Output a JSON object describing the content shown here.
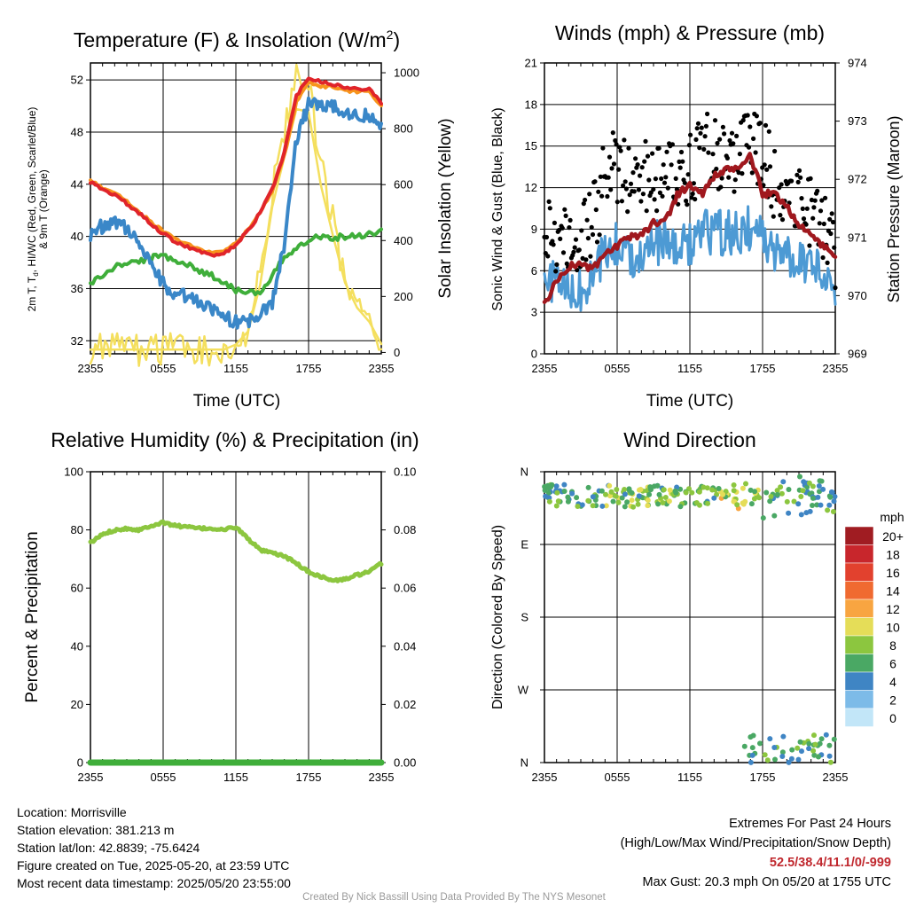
{
  "colors": {
    "temp": "#e0242a",
    "hi_wc": "#f7941d",
    "dewpoint": "#3fae3a",
    "wet": "#3a87c8",
    "solar": "#f4df5e",
    "wind": "#4d9ad4",
    "gust": "#000000",
    "pressure": "#a0181e",
    "rh": "#8cc63f",
    "precip": "#3fae3a"
  },
  "chart_data": [
    {
      "id": "temperature",
      "type": "line",
      "title": "Temperature (F) & Insolation (W/m",
      "title_sup": "2",
      "title_end": ")",
      "xlabel": "Time (UTC)",
      "ylabel_left_line1": "2m T, T",
      "ylabel_left_sub": "d",
      "ylabel_left_line1_end": ", HI/WC (Red, Green, Scarlet/Blue)",
      "ylabel_left_line2": "& 9m T (Orange)",
      "ylabel_right": "Solar Insolation (Yellow)",
      "x_ticks": [
        "2355",
        "0555",
        "1155",
        "1755",
        "2355"
      ],
      "ylim": [
        31,
        53.3
      ],
      "y_ticks": [
        32,
        36,
        40,
        44,
        48,
        52
      ],
      "y2lim": [
        -5,
        1035
      ],
      "y2_ticks": [
        0,
        200,
        400,
        600,
        800,
        1000
      ],
      "x_hours": [
        0,
        1,
        2,
        3,
        4,
        5,
        6,
        7,
        8,
        9,
        10,
        11,
        12,
        13,
        14,
        15,
        16,
        17,
        18,
        19,
        20,
        21,
        22,
        23,
        24
      ],
      "series": [
        {
          "values": [
            44.2,
            43.6,
            43.2,
            42.5,
            41.8,
            41,
            40.2,
            39.6,
            39.2,
            38.8,
            38.6,
            38.6,
            39.4,
            40.4,
            41.8,
            43.6,
            46.5,
            50.8,
            52.2,
            51.9,
            51.7,
            51.4,
            51.3,
            51.4,
            50.2
          ]
        },
        {
          "values": [
            44.3,
            43.7,
            43.4,
            42.7,
            41.9,
            41.1,
            40.4,
            39.8,
            39.4,
            39,
            38.8,
            38.8,
            39.5,
            40.5,
            41.8,
            43.5,
            46.2,
            50.3,
            51.8,
            51.5,
            51.5,
            51.2,
            51.1,
            51.2,
            50
          ]
        },
        {
          "values": [
            36.4,
            37,
            37.6,
            38,
            38.1,
            38.3,
            38.6,
            38.2,
            37.8,
            37.4,
            37,
            36.5,
            35.9,
            35.8,
            35.5,
            36.9,
            38.4,
            39.2,
            39.8,
            40,
            39.9,
            40,
            40.1,
            40.2,
            40.4
          ]
        },
        {
          "values": [
            40.2,
            40.8,
            41.2,
            40.6,
            39.8,
            37.8,
            36.4,
            35.6,
            35.3,
            34.9,
            34.3,
            33.8,
            33.4,
            33.6,
            34,
            35,
            39.5,
            47.4,
            50.1,
            50.2,
            50.1,
            49.6,
            49.4,
            49.3,
            48.5
          ]
        },
        {
          "values": [
            10,
            10,
            10,
            10,
            10,
            10,
            10,
            10,
            10,
            10,
            10,
            10,
            28,
            75,
            240,
            520,
            700,
            870,
            860,
            600,
            420,
            250,
            160,
            110,
            30
          ]
        }
      ]
    },
    {
      "id": "winds",
      "type": "line",
      "title": "Winds (mph) & Pressure (mb)",
      "xlabel": "Time (UTC)",
      "ylabel_left": "Sonic Wind & Gust (Blue, Black)",
      "ylabel_right": "Station Pressure (Maroon)",
      "x_ticks": [
        "2355",
        "0555",
        "1155",
        "1755",
        "2355"
      ],
      "ylim": [
        0,
        21
      ],
      "y_ticks": [
        0,
        3,
        6,
        9,
        12,
        15,
        18,
        21
      ],
      "y2lim": [
        969,
        974
      ],
      "y2_ticks": [
        969,
        970,
        971,
        972,
        973,
        974
      ],
      "x_hours": [
        0,
        1,
        2,
        3,
        4,
        5,
        6,
        7,
        8,
        9,
        10,
        11,
        12,
        13,
        14,
        15,
        16,
        17,
        18,
        19,
        20,
        21,
        22,
        23,
        24
      ],
      "series": [
        {
          "values": [
            4.8,
            5.5,
            4.2,
            4.5,
            5.2,
            7.4,
            7.8,
            7.1,
            7.6,
            7.9,
            8.2,
            7.4,
            8.1,
            8.6,
            8.9,
            8.7,
            8.6,
            9.2,
            8.4,
            7.6,
            6.8,
            7.2,
            6.5,
            5.8,
            4.3
          ]
        },
        {
          "values": [
            9.5,
            8.6,
            7.8,
            8.4,
            9.5,
            12.8,
            13.6,
            12.9,
            13.2,
            12.6,
            12.8,
            13.5,
            13.4,
            14.4,
            14.8,
            13.6,
            14.2,
            15.6,
            14.6,
            12.4,
            11.8,
            11.6,
            10.4,
            9.1,
            7.3
          ]
        },
        {
          "values": [
            969.85,
            970.25,
            970.5,
            970.55,
            970.45,
            970.7,
            970.85,
            971,
            971.05,
            971.25,
            971.3,
            971.75,
            971.9,
            971.75,
            972.05,
            972.15,
            972.2,
            972.4,
            971.75,
            971.75,
            971.55,
            971.2,
            971.05,
            970.85,
            970.7
          ]
        }
      ]
    },
    {
      "id": "humidity",
      "type": "line",
      "title": "Relative Humidity (%) & Precipitation (in)",
      "ylabel_left": "Percent & Precipitation",
      "x_ticks": [
        "2355",
        "0555",
        "1155",
        "1755",
        "2355"
      ],
      "ylim": [
        0,
        100
      ],
      "y_ticks": [
        0,
        20,
        40,
        60,
        80,
        100
      ],
      "y2lim": [
        0,
        0.1
      ],
      "y2_ticks": [
        "0.00",
        "0.02",
        "0.04",
        "0.06",
        "0.08",
        "0.10"
      ],
      "x_hours": [
        0,
        1,
        2,
        3,
        4,
        5,
        6,
        7,
        8,
        9,
        10,
        11,
        12,
        13,
        14,
        15,
        16,
        17,
        18,
        19,
        20,
        21,
        22,
        23,
        24
      ],
      "series": [
        {
          "values": [
            75.5,
            78.5,
            80,
            80.5,
            80,
            81.5,
            82.5,
            81.5,
            81,
            80.5,
            80.5,
            80,
            81,
            77,
            73,
            72,
            71,
            68.5,
            65.5,
            64,
            62.5,
            63,
            64.5,
            65.5,
            68.5
          ]
        },
        {
          "values": [
            0,
            0,
            0,
            0,
            0,
            0,
            0,
            0,
            0,
            0,
            0,
            0,
            0,
            0,
            0,
            0,
            0,
            0,
            0,
            0,
            0,
            0,
            0,
            0,
            0
          ]
        }
      ]
    },
    {
      "id": "direction",
      "type": "scatter",
      "title": "Wind Direction",
      "ylabel_left": "Direction (Colored By Speed)",
      "x_ticks": [
        "2355",
        "0555",
        "1155",
        "1755",
        "2355"
      ],
      "y_ticks": [
        "N",
        "W",
        "S",
        "E",
        "N"
      ],
      "ylim": [
        0,
        360
      ],
      "legend_title": "mph",
      "legend_labels": [
        "20+",
        "18",
        "16",
        "14",
        "12",
        "10",
        "8",
        "6",
        "4",
        "2",
        "0"
      ],
      "legend_colors": [
        "#a01c22",
        "#c8262c",
        "#e2412e",
        "#f06a30",
        "#f8a541",
        "#e5dd58",
        "#8cc63f",
        "#4aa864",
        "#3f85c4",
        "#7dbbe8",
        "#c2e6f8"
      ],
      "legend_placement": "right",
      "series": [
        {
          "name": "north-westerly cluster",
          "x_range": [
            0,
            24
          ],
          "y_center": 330,
          "y_spread": 14
        },
        {
          "name": "northerly cluster",
          "x_range": [
            16.5,
            24
          ],
          "y_center": 10,
          "y_spread": 18
        }
      ]
    }
  ],
  "info_left": {
    "location": "Location: Morrisville",
    "elevation": "Station elevation: 381.213 m",
    "latlon": "Station lat/lon: 42.8839; -75.6424",
    "created": "Figure created on Tue, 2025-05-20, at 23:59 UTC",
    "recent": "Most recent data timestamp: 2025/05/20 23:55:00"
  },
  "info_right": {
    "title": "Extremes For Past 24 Hours",
    "subtitle": "(High/Low/Max Wind/Precipitation/Snow Depth)",
    "values": "52.5/38.4/11.1/0/-999",
    "gust": "Max Gust: 20.3 mph On 05/20 at 1755 UTC"
  },
  "credit": "Created By Nick Bassill Using Data Provided By The NYS Mesonet"
}
